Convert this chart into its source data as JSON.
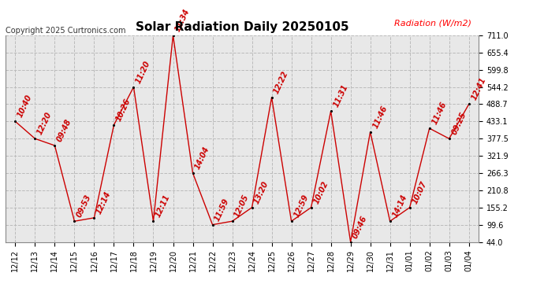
{
  "title": "Solar Radiation Daily 20250105",
  "copyright": "Copyright 2025 Curtronics.com",
  "ylabel": "Radiation (W/m2)",
  "ylabel_color": "#ff0000",
  "background_color": "#ffffff",
  "plot_bg_color": "#e8e8e8",
  "line_color": "#cc0000",
  "marker_color": "#000000",
  "x_labels": [
    "12/12",
    "12/13",
    "12/14",
    "12/15",
    "12/16",
    "12/17",
    "12/18",
    "12/19",
    "12/20",
    "12/21",
    "12/22",
    "12/23",
    "12/24",
    "12/25",
    "12/26",
    "12/27",
    "12/28",
    "12/29",
    "12/30",
    "12/31",
    "01/01",
    "01/02",
    "01/03",
    "01/04"
  ],
  "y_values": [
    433.1,
    377.5,
    355.3,
    110.8,
    121.9,
    421.9,
    544.2,
    110.8,
    711.0,
    266.3,
    99.6,
    110.8,
    155.2,
    510.9,
    110.8,
    155.2,
    466.3,
    44.0,
    399.3,
    110.8,
    155.2,
    410.9,
    377.5,
    488.7
  ],
  "time_labels": [
    "10:40",
    "12:20",
    "09:48",
    "09:53",
    "12:14",
    "10:26",
    "11:20",
    "12:11",
    "11:34",
    "14:04",
    "11:59",
    "12:05",
    "13:20",
    "12:22",
    "12:59",
    "10:02",
    "11:31",
    "09:46",
    "11:46",
    "14:14",
    "10:07",
    "11:46",
    "09:25",
    "12:41"
  ],
  "ylim_min": 44.0,
  "ylim_max": 711.0,
  "yticks": [
    44.0,
    99.6,
    155.2,
    210.8,
    266.3,
    321.9,
    377.5,
    433.1,
    488.7,
    544.2,
    599.8,
    655.4,
    711.0
  ],
  "grid_color": "#bbbbbb",
  "title_fontsize": 11,
  "tick_fontsize": 7,
  "label_fontsize": 7,
  "copyright_fontsize": 7
}
